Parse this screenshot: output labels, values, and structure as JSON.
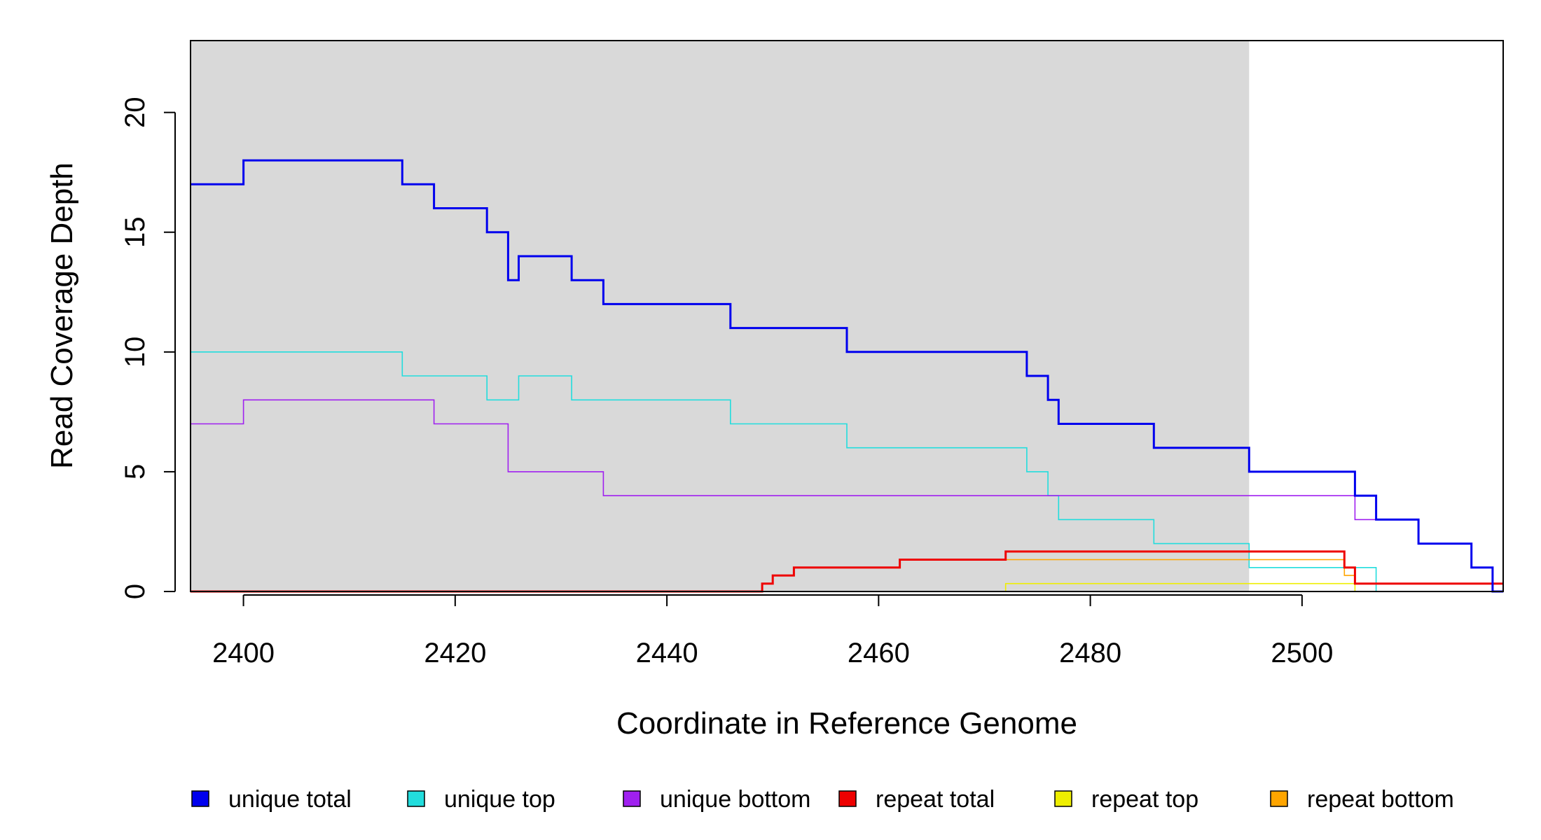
{
  "chart_data": {
    "type": "line",
    "line_style": "step",
    "xlabel": "Coordinate in Reference Genome",
    "ylabel": "Read Coverage Depth",
    "xlim": [
      2395,
      2519
    ],
    "ylim": [
      0,
      23
    ],
    "x_ticks": [
      2400,
      2420,
      2440,
      2460,
      2480,
      2500
    ],
    "y_ticks": [
      0,
      5,
      10,
      15,
      20
    ],
    "shaded_region": {
      "x_from": 2395,
      "x_to": 2495,
      "color": "#d9d9d9"
    },
    "legend_position": "bottom",
    "series": [
      {
        "name": "unique total",
        "color": "#0000ee",
        "points": [
          [
            2395,
            17
          ],
          [
            2400,
            18
          ],
          [
            2415,
            17
          ],
          [
            2418,
            16
          ],
          [
            2423,
            15
          ],
          [
            2425,
            13
          ],
          [
            2426,
            14
          ],
          [
            2431,
            13
          ],
          [
            2434,
            12
          ],
          [
            2446,
            11
          ],
          [
            2457,
            10
          ],
          [
            2474,
            9
          ],
          [
            2476,
            8
          ],
          [
            2477,
            7
          ],
          [
            2486,
            6
          ],
          [
            2495,
            5
          ],
          [
            2505,
            4
          ],
          [
            2507,
            3
          ],
          [
            2511,
            2
          ],
          [
            2516,
            1
          ],
          [
            2518,
            0
          ],
          [
            2519,
            0
          ]
        ]
      },
      {
        "name": "unique top",
        "color": "#22dddd",
        "points": [
          [
            2395,
            10
          ],
          [
            2415,
            9
          ],
          [
            2423,
            8
          ],
          [
            2426,
            9
          ],
          [
            2431,
            8
          ],
          [
            2446,
            7
          ],
          [
            2457,
            6
          ],
          [
            2474,
            5
          ],
          [
            2476,
            4
          ],
          [
            2477,
            3
          ],
          [
            2486,
            2
          ],
          [
            2495,
            1
          ],
          [
            2507,
            0
          ],
          [
            2519,
            0
          ]
        ]
      },
      {
        "name": "unique bottom",
        "color": "#a020f0",
        "points": [
          [
            2395,
            7
          ],
          [
            2400,
            8
          ],
          [
            2418,
            7
          ],
          [
            2425,
            5
          ],
          [
            2434,
            4
          ],
          [
            2505,
            3
          ],
          [
            2511,
            2
          ],
          [
            2516,
            1
          ],
          [
            2518,
            0
          ],
          [
            2519,
            0
          ]
        ]
      },
      {
        "name": "repeat total",
        "color": "#ee0000",
        "points": [
          [
            2395,
            0
          ],
          [
            2449,
            0.33
          ],
          [
            2450,
            0.67
          ],
          [
            2452,
            1
          ],
          [
            2462,
            1.33
          ],
          [
            2472,
            1.67
          ],
          [
            2504,
            1
          ],
          [
            2505,
            0.33
          ],
          [
            2519,
            0.33
          ]
        ]
      },
      {
        "name": "repeat top",
        "color": "#eeee00",
        "points": [
          [
            2395,
            0
          ],
          [
            2472,
            0.33
          ],
          [
            2505,
            0
          ],
          [
            2519,
            0
          ]
        ]
      },
      {
        "name": "repeat bottom",
        "color": "#ffa500",
        "points": [
          [
            2395,
            0
          ],
          [
            2449,
            0.33
          ],
          [
            2450,
            0.67
          ],
          [
            2452,
            1
          ],
          [
            2462,
            1.33
          ],
          [
            2504,
            0.67
          ],
          [
            2505,
            0.33
          ],
          [
            2519,
            0.33
          ]
        ]
      }
    ]
  }
}
